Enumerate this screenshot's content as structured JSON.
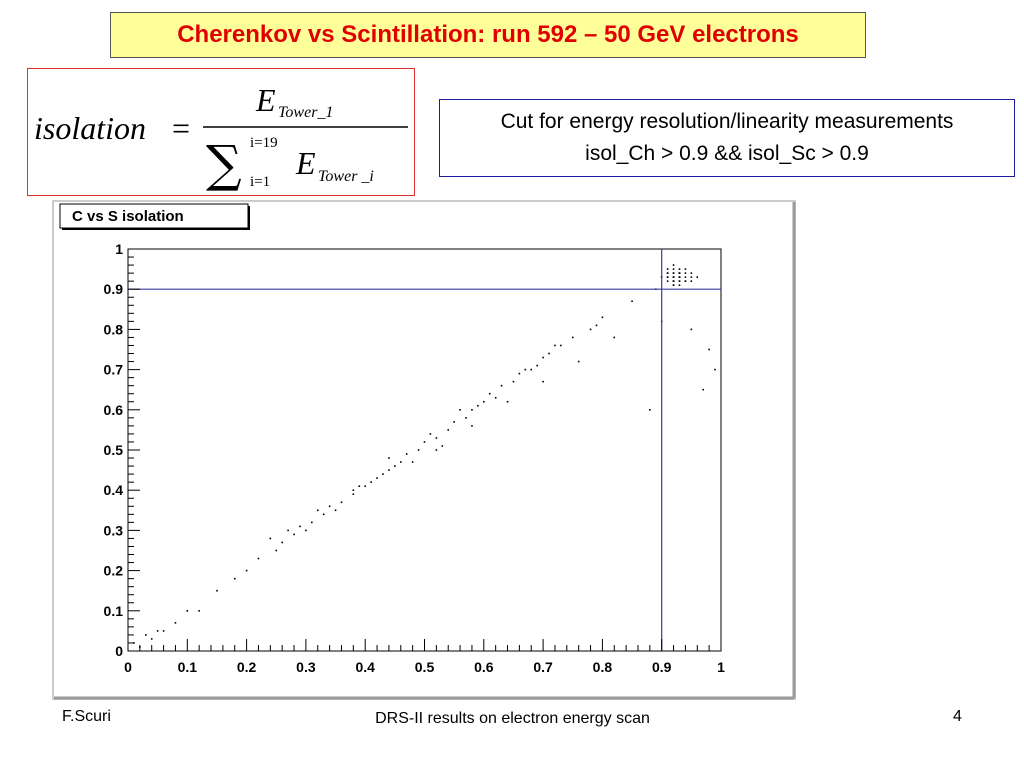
{
  "slide": {
    "title": "Cherenkov vs Scintillation: run 592 – 50 GeV electrons",
    "formula": {
      "lhs": "isolation",
      "equals": "=",
      "num_E": "E",
      "num_sub": "Tower_1",
      "sum_upper": "i=19",
      "sum_lower": "i=1",
      "den_E": "E",
      "den_sub": "Tower _i"
    },
    "cut_text_line1": "Cut for energy resolution/linearity measurements",
    "cut_text_line2": "isol_Ch > 0.9  && isol_Sc > 0.9",
    "footer_left": "F.Scuri",
    "footer_center": "DRS-II results on electron energy scan",
    "footer_right": "4"
  },
  "chart_data": {
    "type": "scatter",
    "title": "C vs S isolation",
    "xlabel": "",
    "ylabel": "",
    "xlim": [
      0,
      1
    ],
    "ylim": [
      0,
      1
    ],
    "xticks": [
      "0",
      "0.1",
      "0.2",
      "0.3",
      "0.4",
      "0.5",
      "0.6",
      "0.7",
      "0.8",
      "0.9",
      "1"
    ],
    "yticks": [
      "0",
      "0.1",
      "0.2",
      "0.3",
      "0.4",
      "0.5",
      "0.6",
      "0.7",
      "0.8",
      "0.9",
      "1"
    ],
    "cut_lines": {
      "x": 0.9,
      "y": 0.9
    },
    "point_color": "#000000",
    "cut_line_color": "#3a3aa0",
    "series": [
      {
        "x": [
          0.92,
          0.93,
          0.91,
          0.94,
          0.92,
          0.93,
          0.9,
          0.95,
          0.92,
          0.91,
          0.93,
          0.94,
          0.92,
          0.93,
          0.96,
          0.91,
          0.92,
          0.93,
          0.94,
          0.92,
          0.9,
          0.93,
          0.95,
          0.92,
          0.91,
          0.93,
          0.92,
          0.94,
          0.93,
          0.92,
          0.89,
          0.95,
          0.92,
          0.93,
          0.91,
          0.94,
          0.92,
          0.93,
          0.92,
          0.91,
          0.85,
          0.8,
          0.78,
          0.75,
          0.72,
          0.7,
          0.68,
          0.66,
          0.65,
          0.63,
          0.62,
          0.6,
          0.58,
          0.57,
          0.55,
          0.54,
          0.52,
          0.5,
          0.49,
          0.47,
          0.46,
          0.44,
          0.43,
          0.41,
          0.4,
          0.38,
          0.36,
          0.35,
          0.33,
          0.31,
          0.3,
          0.28,
          0.26,
          0.25,
          0.22,
          0.2,
          0.18,
          0.15,
          0.1,
          0.05,
          0.02,
          0.01,
          0.03,
          0.04,
          0.06,
          0.08,
          0.12,
          0.9,
          0.95,
          0.98,
          0.99,
          0.97,
          0.88,
          0.82,
          0.76,
          0.7,
          0.64,
          0.58,
          0.52,
          0.48,
          0.42,
          0.38,
          0.32,
          0.27,
          0.24,
          0.56,
          0.61,
          0.67,
          0.73,
          0.79,
          0.45,
          0.51,
          0.59,
          0.69,
          0.71,
          0.53,
          0.44,
          0.39,
          0.34,
          0.29
        ],
        "y": [
          0.93,
          0.94,
          0.92,
          0.93,
          0.95,
          0.92,
          0.93,
          0.94,
          0.91,
          0.93,
          0.94,
          0.92,
          0.96,
          0.93,
          0.93,
          0.94,
          0.92,
          0.91,
          0.95,
          0.94,
          0.93,
          0.92,
          0.93,
          0.94,
          0.95,
          0.93,
          0.92,
          0.94,
          0.93,
          0.91,
          0.9,
          0.92,
          0.93,
          0.95,
          0.94,
          0.92,
          0.93,
          0.94,
          0.92,
          0.93,
          0.87,
          0.83,
          0.8,
          0.78,
          0.76,
          0.73,
          0.7,
          0.69,
          0.67,
          0.66,
          0.63,
          0.62,
          0.6,
          0.58,
          0.57,
          0.55,
          0.53,
          0.52,
          0.5,
          0.49,
          0.47,
          0.45,
          0.44,
          0.42,
          0.41,
          0.39,
          0.37,
          0.35,
          0.34,
          0.32,
          0.3,
          0.29,
          0.27,
          0.25,
          0.23,
          0.2,
          0.18,
          0.15,
          0.1,
          0.05,
          0.01,
          0.02,
          0.04,
          0.03,
          0.05,
          0.07,
          0.1,
          0.82,
          0.8,
          0.75,
          0.7,
          0.65,
          0.6,
          0.78,
          0.72,
          0.67,
          0.62,
          0.56,
          0.5,
          0.47,
          0.43,
          0.4,
          0.35,
          0.3,
          0.28,
          0.6,
          0.64,
          0.7,
          0.76,
          0.81,
          0.46,
          0.54,
          0.61,
          0.71,
          0.74,
          0.51,
          0.48,
          0.41,
          0.36,
          0.31
        ]
      }
    ]
  }
}
